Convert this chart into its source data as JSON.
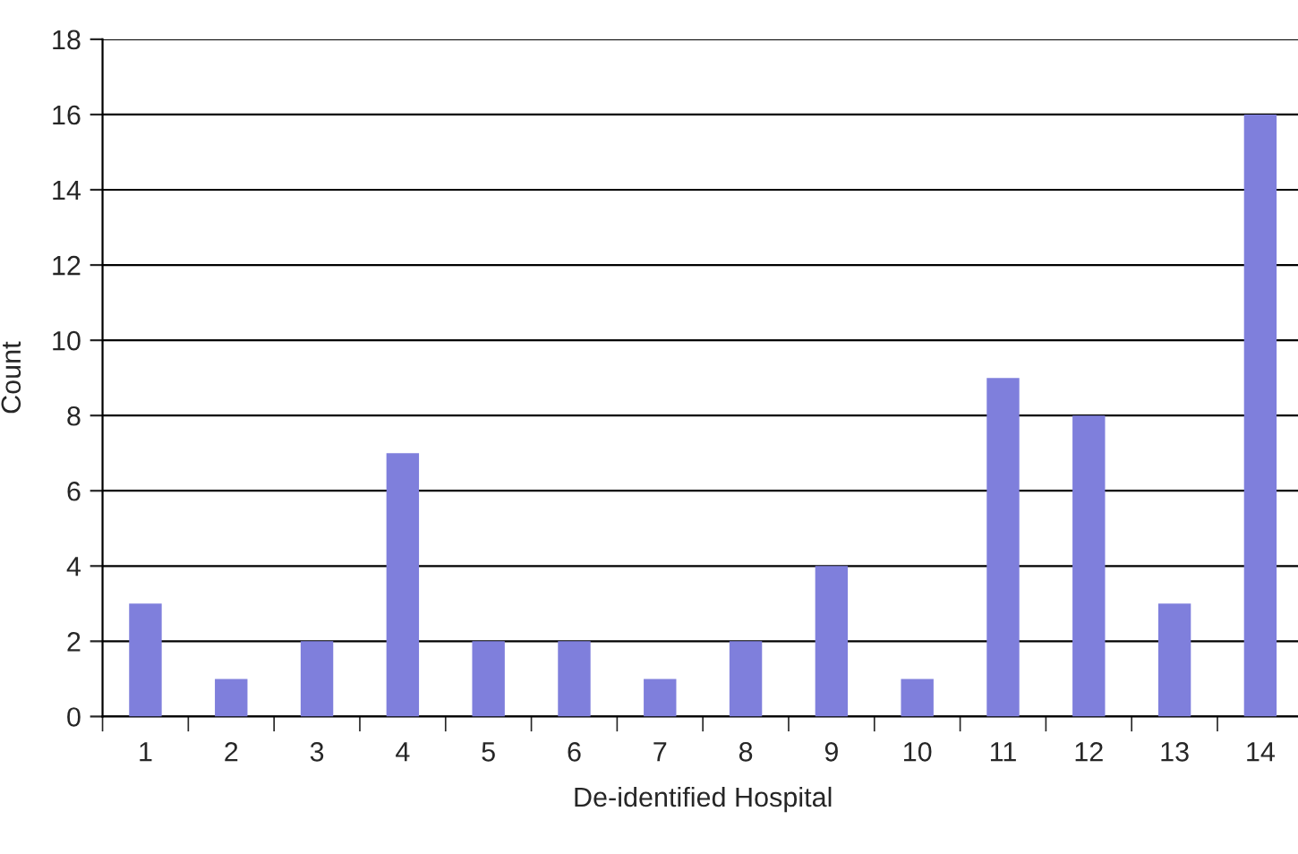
{
  "chart_data": {
    "type": "bar",
    "xlabel": "De-identified Hospital",
    "ylabel": "Count",
    "categories": [
      "1",
      "2",
      "3",
      "4",
      "5",
      "6",
      "7",
      "8",
      "9",
      "10",
      "11",
      "12",
      "13",
      "14"
    ],
    "values": [
      3,
      1,
      2,
      7,
      2,
      2,
      1,
      2,
      4,
      1,
      9,
      8,
      3,
      16
    ],
    "color": "#7f7fdc",
    "ylim": [
      0,
      18
    ],
    "yticks": [
      0,
      2,
      4,
      6,
      8,
      10,
      12,
      14,
      16,
      18
    ],
    "grid": "y"
  }
}
